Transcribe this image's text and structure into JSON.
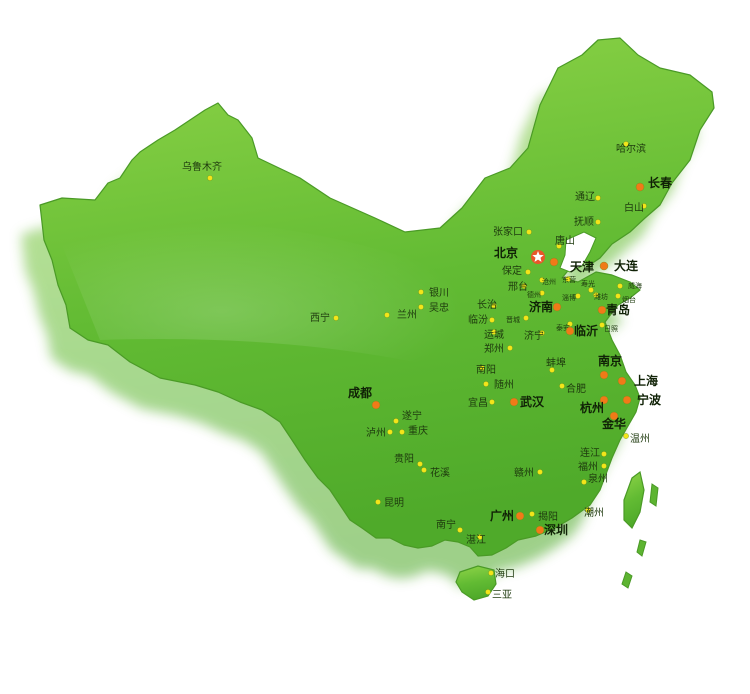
{
  "map": {
    "colors": {
      "land_light": "#8fd448",
      "land_dark": "#4faa2a",
      "shadow": "#bdbdbd",
      "water": "#ffffff",
      "minor_dot": "#f2e51a",
      "major_dot": "#f07a18",
      "capital_star": "#ffffff",
      "capital_ring": "#e8562a"
    },
    "cities": [
      {
        "name": "乌鲁木齐",
        "tier": "minor"
      },
      {
        "name": "哈尔滨",
        "tier": "minor"
      },
      {
        "name": "长春",
        "tier": "major"
      },
      {
        "name": "通辽",
        "tier": "minor"
      },
      {
        "name": "白山",
        "tier": "minor"
      },
      {
        "name": "抚顺",
        "tier": "minor"
      },
      {
        "name": "张家口",
        "tier": "minor"
      },
      {
        "name": "北京",
        "tier": "capital"
      },
      {
        "name": "唐山",
        "tier": "minor"
      },
      {
        "name": "天津",
        "tier": "major"
      },
      {
        "name": "大连",
        "tier": "major"
      },
      {
        "name": "保定",
        "tier": "minor"
      },
      {
        "name": "沧州",
        "tier": "minor"
      },
      {
        "name": "东营",
        "tier": "minor"
      },
      {
        "name": "寿光",
        "tier": "minor"
      },
      {
        "name": "威海",
        "tier": "minor"
      },
      {
        "name": "邢台",
        "tier": "minor"
      },
      {
        "name": "德州",
        "tier": "minor"
      },
      {
        "name": "淄博",
        "tier": "minor"
      },
      {
        "name": "潍坊",
        "tier": "minor"
      },
      {
        "name": "烟台",
        "tier": "minor"
      },
      {
        "name": "银川",
        "tier": "minor"
      },
      {
        "name": "吴忠",
        "tier": "minor"
      },
      {
        "name": "长治",
        "tier": "minor"
      },
      {
        "name": "济南",
        "tier": "major"
      },
      {
        "name": "青岛",
        "tier": "major"
      },
      {
        "name": "西宁",
        "tier": "minor"
      },
      {
        "name": "兰州",
        "tier": "minor"
      },
      {
        "name": "临汾",
        "tier": "minor"
      },
      {
        "name": "晋城",
        "tier": "minor"
      },
      {
        "name": "泰安",
        "tier": "minor"
      },
      {
        "name": "临沂",
        "tier": "major"
      },
      {
        "name": "日照",
        "tier": "minor"
      },
      {
        "name": "运城",
        "tier": "minor"
      },
      {
        "name": "济宁",
        "tier": "minor"
      },
      {
        "name": "郑州",
        "tier": "minor"
      },
      {
        "name": "南阳",
        "tier": "minor"
      },
      {
        "name": "蚌埠",
        "tier": "minor"
      },
      {
        "name": "南京",
        "tier": "major"
      },
      {
        "name": "随州",
        "tier": "minor"
      },
      {
        "name": "合肥",
        "tier": "minor"
      },
      {
        "name": "上海",
        "tier": "major"
      },
      {
        "name": "成都",
        "tier": "major"
      },
      {
        "name": "宜昌",
        "tier": "minor"
      },
      {
        "name": "武汉",
        "tier": "major"
      },
      {
        "name": "杭州",
        "tier": "major"
      },
      {
        "name": "宁波",
        "tier": "major"
      },
      {
        "name": "遂宁",
        "tier": "minor"
      },
      {
        "name": "金华",
        "tier": "major"
      },
      {
        "name": "泸州",
        "tier": "minor"
      },
      {
        "name": "重庆",
        "tier": "minor"
      },
      {
        "name": "温州",
        "tier": "minor"
      },
      {
        "name": "连江",
        "tier": "minor"
      },
      {
        "name": "贵阳",
        "tier": "minor"
      },
      {
        "name": "福州",
        "tier": "minor"
      },
      {
        "name": "花溪",
        "tier": "minor"
      },
      {
        "name": "赣州",
        "tier": "minor"
      },
      {
        "name": "泉州",
        "tier": "minor"
      },
      {
        "name": "昆明",
        "tier": "minor"
      },
      {
        "name": "广州",
        "tier": "major"
      },
      {
        "name": "揭阳",
        "tier": "minor"
      },
      {
        "name": "潮州",
        "tier": "minor"
      },
      {
        "name": "南宁",
        "tier": "minor"
      },
      {
        "name": "湛江",
        "tier": "minor"
      },
      {
        "name": "深圳",
        "tier": "major"
      },
      {
        "name": "海口",
        "tier": "minor"
      },
      {
        "name": "三亚",
        "tier": "minor"
      }
    ]
  }
}
